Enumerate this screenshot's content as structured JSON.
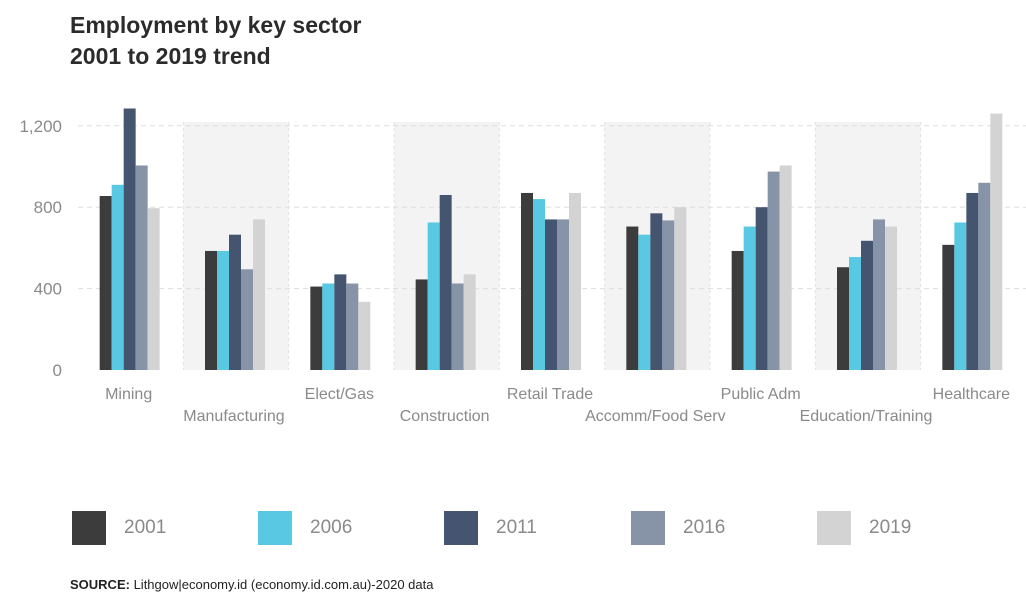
{
  "title": {
    "line1": "Employment by key sector",
    "line2": "2001 to 2019 trend"
  },
  "source": {
    "label": "SOURCE:",
    "text": "Lithgow|economy.id (economy.id.com.au)-2020 data"
  },
  "chart_data": {
    "type": "bar",
    "title": "Employment by key sector 2001 to 2019 trend",
    "categories": [
      "Mining",
      "Manufacturing",
      "Elect/Gas",
      "Construction",
      "Retail Trade",
      "Accomm/Food Serv",
      "Public Adm",
      "Education/Training",
      "Healthcare"
    ],
    "series": [
      {
        "name": "2001",
        "color": "#3c3c3c",
        "values": [
          855,
          585,
          410,
          445,
          870,
          705,
          585,
          505,
          615
        ]
      },
      {
        "name": "2006",
        "color": "#59c8e3",
        "values": [
          910,
          585,
          425,
          725,
          840,
          665,
          705,
          555,
          725
        ]
      },
      {
        "name": "2011",
        "color": "#455570",
        "values": [
          1285,
          665,
          470,
          860,
          740,
          770,
          800,
          635,
          870
        ]
      },
      {
        "name": "2016",
        "color": "#8794a8",
        "values": [
          1005,
          495,
          425,
          425,
          740,
          735,
          975,
          740,
          920
        ]
      },
      {
        "name": "2019",
        "color": "#d3d3d3",
        "values": [
          795,
          740,
          335,
          470,
          870,
          800,
          1005,
          705,
          1260
        ]
      }
    ],
    "y_ticks": [
      "0",
      "400",
      "800",
      "1,200"
    ],
    "y_tick_values": [
      0,
      400,
      800,
      1200
    ],
    "ylim": [
      0,
      1300
    ],
    "grid": true,
    "legend_position": "bottom"
  }
}
